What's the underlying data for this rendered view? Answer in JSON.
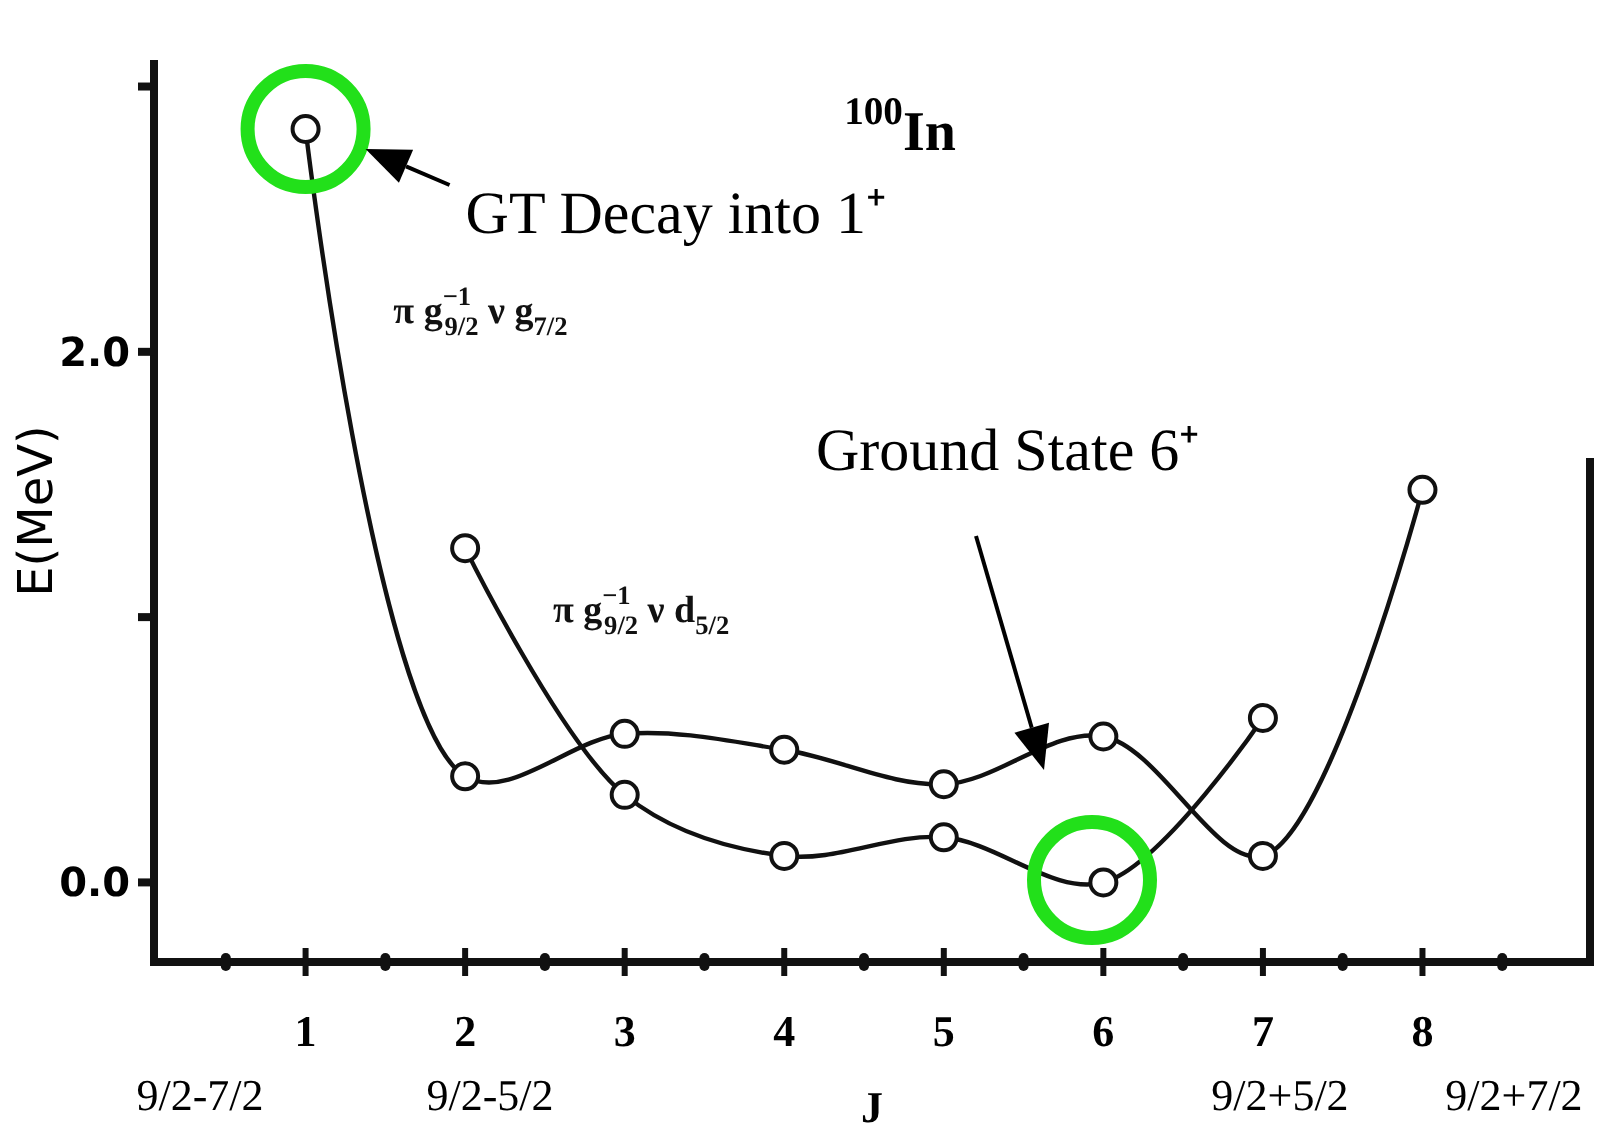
{
  "chart_data": {
    "type": "line",
    "title": "$^{100}$In",
    "xlabel": "J",
    "ylabel": "E(MeV)",
    "xlim": [
      0.05,
      9.05
    ],
    "xticks": [
      {
        "value": 0.5,
        "label": null
      },
      1,
      {
        "value": 1.5,
        "label": null
      },
      2,
      {
        "value": 2.5,
        "label": null
      },
      3,
      {
        "value": 3.5,
        "label": null
      },
      4,
      {
        "value": 4.5,
        "label": null
      },
      5,
      {
        "value": 5.5,
        "label": null
      },
      6,
      {
        "value": 6.5,
        "label": null
      },
      7,
      {
        "value": 7.5,
        "label": null
      },
      8,
      {
        "value": 8.5,
        "label": null
      }
    ],
    "ylim": [
      -0.3,
      3.1
    ],
    "yticks": [
      {
        "value": 0,
        "label": "0.0"
      },
      {
        "value": 1,
        "label": null
      },
      {
        "value": 2,
        "label": "2.0"
      },
      {
        "value": 3,
        "label": null
      }
    ],
    "grid": false,
    "legend": false,
    "marker": "circle",
    "line_style": "solid",
    "series": [
      {
        "name": "π g$^{−1}$$_{9/2}$ ν g$_{7/2}$",
        "color": "#111111",
        "x": [
          1,
          2,
          3,
          4,
          5,
          6,
          7,
          8
        ],
        "values": [
          2.84,
          0.4,
          0.56,
          0.5,
          0.37,
          0.55,
          0.1,
          1.48
        ]
      },
      {
        "name": "π g$^{−1}$$_{9/2}$ ν d$_{5/2}$",
        "color": "#111111",
        "x": [
          2,
          3,
          4,
          5,
          6,
          7
        ],
        "values": [
          1.26,
          0.33,
          0.1,
          0.17,
          0.0,
          0.62
        ]
      }
    ],
    "annotations": [
      {
        "text": "GT Decay into 1⁺",
        "x": 1,
        "y": 2.84
      },
      "Ground State 6⁺",
      "9/2-7/2",
      "9/2-5/2",
      "9/2+5/2",
      "9/2+7/2"
    ]
  }
}
